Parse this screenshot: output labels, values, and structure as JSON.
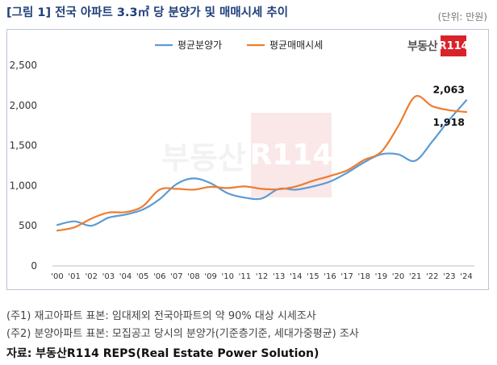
{
  "header": {
    "title": "[그림 1] 전국 아파트 3.3㎡ 당 분양가 및 매매시세 추이",
    "unit": "(단위: 만원)"
  },
  "brand": {
    "text": "부동산",
    "mark": "R114"
  },
  "watermark": {
    "text": "부동산",
    "mark": "R114"
  },
  "chart_data": {
    "type": "line",
    "categories": [
      "'00",
      "'01",
      "'02",
      "'03",
      "'04",
      "'05",
      "'06",
      "'07",
      "'08",
      "'09",
      "'10",
      "'11",
      "'12",
      "'13",
      "'14",
      "'15",
      "'16",
      "'17",
      "'18",
      "'19",
      "'20",
      "'21",
      "'22",
      "'23",
      "'24"
    ],
    "series": [
      {
        "name": "평균분양가",
        "color": "#5b9bd5",
        "values": [
          510,
          555,
          500,
          600,
          640,
          700,
          830,
          1020,
          1090,
          1030,
          905,
          850,
          840,
          960,
          950,
          990,
          1050,
          1160,
          1290,
          1390,
          1390,
          1310,
          1550,
          1820,
          2063
        ]
      },
      {
        "name": "평균매매시세",
        "color": "#ed7d31",
        "values": [
          440,
          480,
          590,
          665,
          670,
          740,
          950,
          960,
          950,
          985,
          970,
          990,
          960,
          955,
          990,
          1060,
          1120,
          1190,
          1320,
          1420,
          1740,
          2110,
          1990,
          1940,
          1918
        ]
      }
    ],
    "annotations": [
      {
        "series": "평균분양가",
        "category": "'24",
        "label": "2,063"
      },
      {
        "series": "평균매매시세",
        "category": "'24",
        "label": "1,918"
      }
    ],
    "yticks": [
      0,
      500,
      1000,
      1500,
      2000,
      2500
    ],
    "ytick_labels": [
      "0",
      "500",
      "1,000",
      "1,500",
      "2,000",
      "2,500"
    ],
    "ylim": [
      0,
      2500
    ],
    "grid": false,
    "legend": "top-left",
    "title": "",
    "xlabel": "",
    "ylabel": ""
  },
  "notes": [
    "(주1) 재고아파트 표본: 임대제외 전국아파트의 약 90% 대상 시세조사",
    "(주2) 분양아파트 표본: 모집공고 당시의 분양가(기준층기준, 세대가중평균) 조사"
  ],
  "source": "자료: 부동산R114 REPS(Real Estate Power Solution)"
}
